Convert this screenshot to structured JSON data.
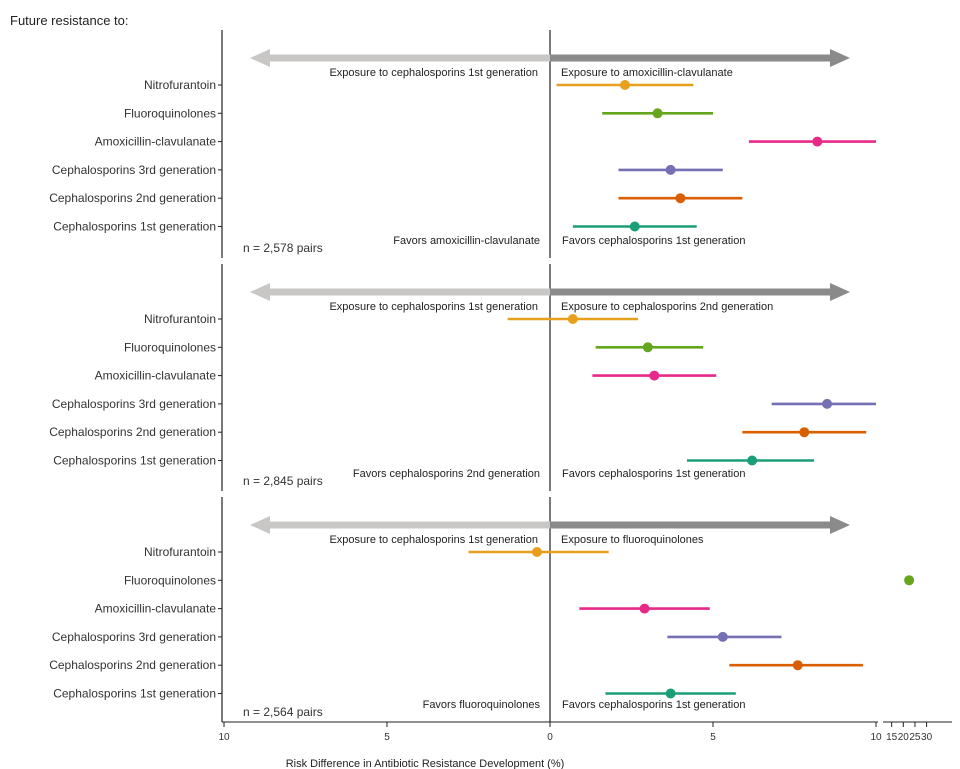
{
  "figure_title": "Future resistance to:",
  "xlabel": "Risk Difference in Antibiotic Resistance Development (%)",
  "main_ticks": [
    {
      "value": -10,
      "label": "10"
    },
    {
      "value": -5,
      "label": "5"
    },
    {
      "value": 0,
      "label": "0"
    },
    {
      "value": 5,
      "label": "5"
    },
    {
      "value": 10,
      "label": "10"
    }
  ],
  "broken_ticks": [
    {
      "value": 15,
      "label": "15"
    },
    {
      "value": 20,
      "label": "20"
    },
    {
      "value": 25,
      "label": "25"
    },
    {
      "value": 30,
      "label": "30"
    }
  ],
  "colors": {
    "Nitrofurantoin": "#E6A01C",
    "Fluoroquinolones": "#66A61E",
    "Amoxicillin-clavulanate": "#E7298A",
    "Cephalosporins 3rd generation": "#7570B3",
    "Cephalosporins 2nd generation": "#D95F02",
    "Cephalosporins 1st generation": "#1B9E77",
    "left_arrow": "#c9c6c6",
    "right_arrow": "#8a8a8a"
  },
  "chart_data": [
    {
      "type": "forest",
      "arrow_left_label": "Exposure to cephalosporins 1st generation",
      "arrow_right_label": "Exposure to amoxicillin-clavulanate",
      "favors_left": "Favors amoxicillin-clavulanate",
      "favors_right": "Favors cephalosporins 1st generation",
      "n_label": "n = 2,578 pairs",
      "rows": [
        {
          "label": "Nitrofurantoin",
          "est": 2.3,
          "lo": 0.2,
          "hi": 4.4
        },
        {
          "label": "Fluoroquinolones",
          "est": 3.3,
          "lo": 1.6,
          "hi": 5.0
        },
        {
          "label": "Amoxicillin-clavulanate",
          "est": 8.2,
          "lo": 6.1,
          "hi": 10.0
        },
        {
          "label": "Cephalosporins 3rd generation",
          "est": 3.7,
          "lo": 2.1,
          "hi": 5.3
        },
        {
          "label": "Cephalosporins 2nd generation",
          "est": 4.0,
          "lo": 2.1,
          "hi": 5.9
        },
        {
          "label": "Cephalosporins 1st generation",
          "est": 2.6,
          "lo": 0.7,
          "hi": 4.5
        }
      ]
    },
    {
      "type": "forest",
      "arrow_left_label": "Exposure to cephalosporins 1st generation",
      "arrow_right_label": "Exposure to cephalosporins 2nd generation",
      "favors_left": "Favors cephalosporins 2nd generation",
      "favors_right": "Favors cephalosporins 1st generation",
      "n_label": "n = 2,845 pairs",
      "rows": [
        {
          "label": "Nitrofurantoin",
          "est": 0.7,
          "lo": -1.3,
          "hi": 2.7
        },
        {
          "label": "Fluoroquinolones",
          "est": 3.0,
          "lo": 1.4,
          "hi": 4.7
        },
        {
          "label": "Amoxicillin-clavulanate",
          "est": 3.2,
          "lo": 1.3,
          "hi": 5.1
        },
        {
          "label": "Cephalosporins 3rd generation",
          "est": 8.5,
          "lo": 6.8,
          "hi": 10.0
        },
        {
          "label": "Cephalosporins 2nd generation",
          "est": 7.8,
          "lo": 5.9,
          "hi": 9.7
        },
        {
          "label": "Cephalosporins 1st generation",
          "est": 6.2,
          "lo": 4.2,
          "hi": 8.1
        }
      ]
    },
    {
      "type": "forest",
      "arrow_left_label": "Exposure to cephalosporins 1st generation",
      "arrow_right_label": "Exposure to fluoroquinolones",
      "favors_left": "Favors fluoroquinolones",
      "favors_right": "Favors cephalosporins 1st generation",
      "n_label": "n = 2,564 pairs",
      "rows": [
        {
          "label": "Nitrofurantoin",
          "est": -0.4,
          "lo": -2.5,
          "hi": 1.8
        },
        {
          "label": "Fluoroquinolones",
          "est": 22.5,
          "lo": 21.0,
          "hi": 24.0,
          "broken_axis": true
        },
        {
          "label": "Amoxicillin-clavulanate",
          "est": 2.9,
          "lo": 0.9,
          "hi": 4.9
        },
        {
          "label": "Cephalosporins 3rd generation",
          "est": 5.3,
          "lo": 3.6,
          "hi": 7.1
        },
        {
          "label": "Cephalosporins 2nd generation",
          "est": 7.6,
          "lo": 5.5,
          "hi": 9.6
        },
        {
          "label": "Cephalosporins 1st generation",
          "est": 3.7,
          "lo": 1.7,
          "hi": 5.7
        }
      ]
    }
  ]
}
